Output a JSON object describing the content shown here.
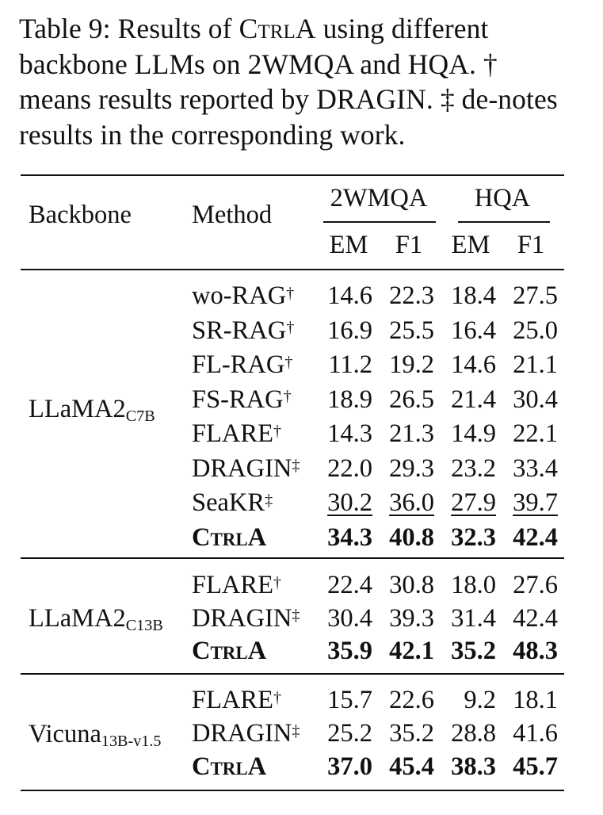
{
  "caption": {
    "prefix": "Table 9: Results of ",
    "method": "CtrlA",
    "suffix": " using different backbone LLMs on 2WMQA and HQA. † means results reported by DRAGIN. ‡ de-notes results in the corresponding work."
  },
  "header": {
    "backbone": "Backbone",
    "method": "Method",
    "groups": [
      "2WMQA",
      "HQA"
    ],
    "metrics": [
      "EM",
      "F1",
      "EM",
      "F1"
    ]
  },
  "blocks": [
    {
      "backbone": "LLaMA2",
      "backbone_sub": "C7B",
      "rows": [
        {
          "method": "wo-RAG",
          "mark": "†",
          "values": [
            "14.6",
            "22.3",
            "18.4",
            "27.5"
          ],
          "style": "normal"
        },
        {
          "method": "SR-RAG",
          "mark": "†",
          "values": [
            "16.9",
            "25.5",
            "16.4",
            "25.0"
          ],
          "style": "normal"
        },
        {
          "method": "FL-RAG",
          "mark": "†",
          "values": [
            "11.2",
            "19.2",
            "14.6",
            "21.1"
          ],
          "style": "normal"
        },
        {
          "method": "FS-RAG",
          "mark": "†",
          "values": [
            "18.9",
            "26.5",
            "21.4",
            "30.4"
          ],
          "style": "normal"
        },
        {
          "method": "FLARE",
          "mark": "†",
          "values": [
            "14.3",
            "21.3",
            "14.9",
            "22.1"
          ],
          "style": "normal"
        },
        {
          "method": "DRAGIN",
          "mark": "‡",
          "values": [
            "22.0",
            "29.3",
            "23.2",
            "33.4"
          ],
          "style": "normal"
        },
        {
          "method": "SeaKR",
          "mark": "‡",
          "values": [
            "30.2",
            "36.0",
            "27.9",
            "39.7"
          ],
          "style": "underline"
        },
        {
          "method": "CtrlA",
          "mark": "",
          "values": [
            "34.3",
            "40.8",
            "32.3",
            "42.4"
          ],
          "style": "bold"
        }
      ]
    },
    {
      "backbone": "LLaMA2",
      "backbone_sub": "C13B",
      "rows": [
        {
          "method": "FLARE",
          "mark": "†",
          "values": [
            "22.4",
            "30.8",
            "18.0",
            "27.6"
          ],
          "style": "normal"
        },
        {
          "method": "DRAGIN",
          "mark": "‡",
          "values": [
            "30.4",
            "39.3",
            "31.4",
            "42.4"
          ],
          "style": "normal"
        },
        {
          "method": "CtrlA",
          "mark": "",
          "values": [
            "35.9",
            "42.1",
            "35.2",
            "48.3"
          ],
          "style": "bold"
        }
      ]
    },
    {
      "backbone": "Vicuna",
      "backbone_sub": "13B-v1.5",
      "rows": [
        {
          "method": "FLARE",
          "mark": "†",
          "values": [
            "15.7",
            "22.6",
            "9.2",
            "18.1"
          ],
          "style": "normal"
        },
        {
          "method": "DRAGIN",
          "mark": "‡",
          "values": [
            "25.2",
            "35.2",
            "28.8",
            "41.6"
          ],
          "style": "normal"
        },
        {
          "method": "CtrlA",
          "mark": "",
          "values": [
            "37.0",
            "45.4",
            "38.3",
            "45.7"
          ],
          "style": "bold"
        }
      ]
    }
  ]
}
